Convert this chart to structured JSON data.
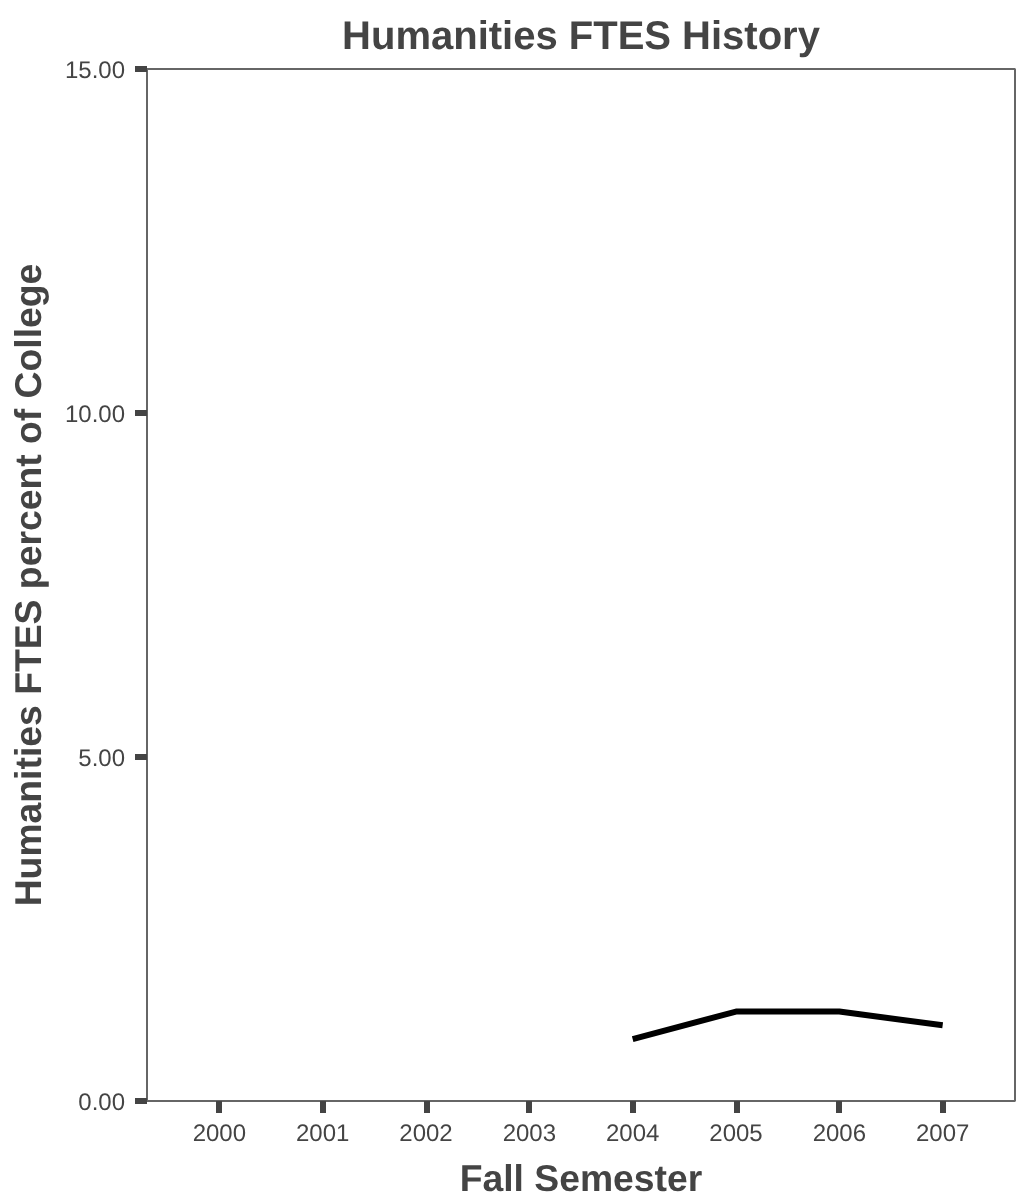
{
  "chart_data": {
    "type": "line",
    "title": "Humanities FTES History",
    "xlabel": "Fall Semester",
    "ylabel": "Humanities FTES percent of College",
    "categories": [
      "2000",
      "2001",
      "2002",
      "2003",
      "2004",
      "2005",
      "2006",
      "2007"
    ],
    "series": [
      {
        "color": "#000000",
        "values": [
          null,
          null,
          null,
          null,
          0.9,
          1.3,
          1.3,
          1.1
        ]
      }
    ],
    "ylim": [
      0,
      15
    ],
    "yticks": [
      {
        "value": 0,
        "label": "0.00"
      },
      {
        "value": 5,
        "label": "5.00"
      },
      {
        "value": 10,
        "label": "10.00"
      },
      {
        "value": 15,
        "label": "15.00"
      }
    ],
    "grid": false,
    "marker": "none",
    "line_style": "solid"
  }
}
